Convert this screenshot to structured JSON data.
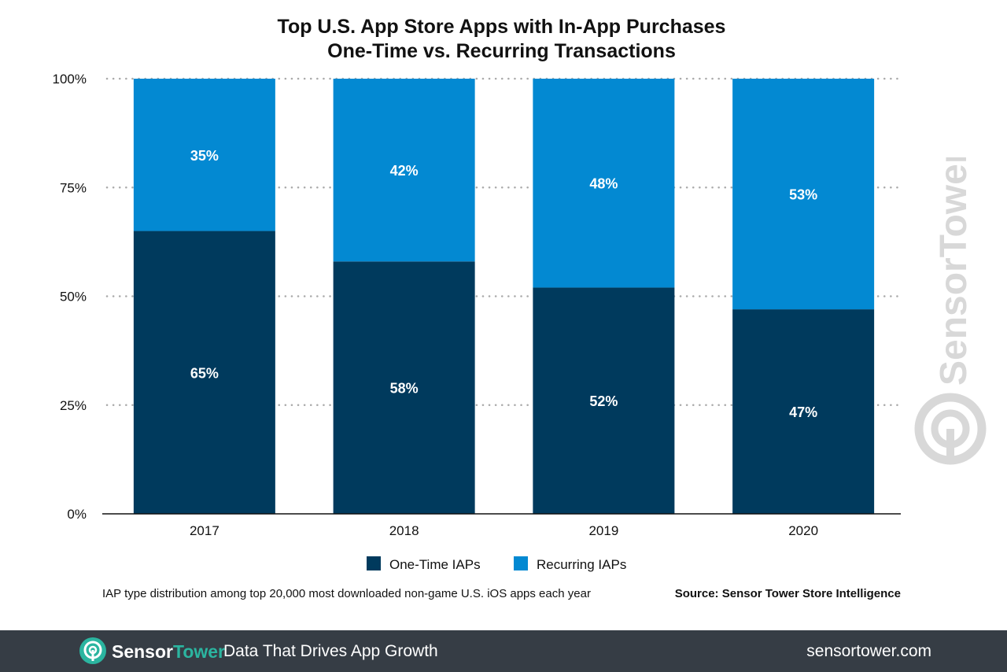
{
  "chart_data": {
    "type": "bar",
    "stacked": true,
    "title": "Top U.S. App Store Apps with In-App Purchases",
    "subtitle": "One-Time vs. Recurring Transactions",
    "categories": [
      "2017",
      "2018",
      "2019",
      "2020"
    ],
    "series": [
      {
        "name": "One-Time IAPs",
        "values": [
          65,
          58,
          52,
          47
        ],
        "labels": [
          "65%",
          "58%",
          "52%",
          "47%"
        ],
        "color": "#003a5d"
      },
      {
        "name": "Recurring IAPs",
        "values": [
          35,
          42,
          48,
          53
        ],
        "labels": [
          "35%",
          "42%",
          "48%",
          "53%"
        ],
        "color": "#0389d2"
      }
    ],
    "y_ticks": [
      "0%",
      "25%",
      "50%",
      "75%",
      "100%"
    ],
    "y_tick_values": [
      0,
      25,
      50,
      75,
      100
    ],
    "ylim": [
      0,
      100
    ],
    "grid": "dotted horizontal",
    "legend_position": "bottom-center"
  },
  "footnote": "IAP type distribution among top 20,000 most downloaded non-game U.S. iOS apps each year",
  "source": "Source: Sensor Tower Store Intelligence",
  "watermark_text": "SensorTower",
  "footer": {
    "brand_part1": "Sensor",
    "brand_part2": "Tower",
    "tagline": "Data That Drives App Growth",
    "url": "sensortower.com",
    "background_color": "#363d45",
    "accent_color": "#2bb5a0"
  }
}
